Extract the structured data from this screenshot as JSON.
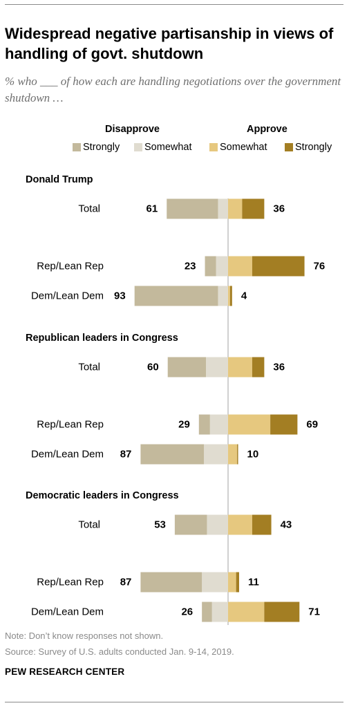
{
  "title": "Widespread negative partisanship in views of handling of govt. shutdown",
  "subtitle": "% who ___ of how each are handling negotiations over the government shutdown …",
  "legend": {
    "disapprove_head": "Disapprove",
    "approve_head": "Approve",
    "items": [
      "Strongly",
      "Somewhat",
      "Somewhat",
      "Strongly"
    ]
  },
  "colors": {
    "disapprove_strongly": "#c3b99c",
    "disapprove_somewhat": "#e0dcd0",
    "approve_somewhat": "#e6c87f",
    "approve_strongly": "#a37e23"
  },
  "chart_data": {
    "type": "bar",
    "stacked": true,
    "diverging": true,
    "series_keys": [
      "disapprove_strongly",
      "disapprove_somewhat",
      "approve_somewhat",
      "approve_strongly"
    ],
    "sections": [
      {
        "heading": "Donald Trump",
        "rows": [
          {
            "label": "Total",
            "disapprove_total": 61,
            "approve_total": 36,
            "disapprove_strongly": 51,
            "disapprove_somewhat": 10,
            "approve_somewhat": 14,
            "approve_strongly": 22
          },
          {
            "label": "Rep/Lean Rep",
            "disapprove_total": 23,
            "approve_total": 76,
            "disapprove_strongly": 11,
            "disapprove_somewhat": 12,
            "approve_somewhat": 24,
            "approve_strongly": 52
          },
          {
            "label": "Dem/Lean Dem",
            "disapprove_total": 93,
            "approve_total": 4,
            "disapprove_strongly": 83,
            "disapprove_somewhat": 10,
            "approve_somewhat": 2,
            "approve_strongly": 2
          }
        ]
      },
      {
        "heading": "Republican leaders in Congress",
        "rows": [
          {
            "label": "Total",
            "disapprove_total": 60,
            "approve_total": 36,
            "disapprove_strongly": 38,
            "disapprove_somewhat": 22,
            "approve_somewhat": 24,
            "approve_strongly": 12
          },
          {
            "label": "Rep/Lean Rep",
            "disapprove_total": 29,
            "approve_total": 69,
            "disapprove_strongly": 11,
            "disapprove_somewhat": 18,
            "approve_somewhat": 42,
            "approve_strongly": 27
          },
          {
            "label": "Dem/Lean Dem",
            "disapprove_total": 87,
            "approve_total": 10,
            "disapprove_strongly": 63,
            "disapprove_somewhat": 24,
            "approve_somewhat": 9,
            "approve_strongly": 1
          }
        ]
      },
      {
        "heading": "Democratic leaders in Congress",
        "rows": [
          {
            "label": "Total",
            "disapprove_total": 53,
            "approve_total": 43,
            "disapprove_strongly": 32,
            "disapprove_somewhat": 21,
            "approve_somewhat": 24,
            "approve_strongly": 19
          },
          {
            "label": "Rep/Lean Rep",
            "disapprove_total": 87,
            "approve_total": 11,
            "disapprove_strongly": 61,
            "disapprove_somewhat": 26,
            "approve_somewhat": 8,
            "approve_strongly": 3
          },
          {
            "label": "Dem/Lean Dem",
            "disapprove_total": 26,
            "approve_total": 71,
            "disapprove_strongly": 10,
            "disapprove_somewhat": 16,
            "approve_somewhat": 36,
            "approve_strongly": 35
          }
        ]
      }
    ]
  },
  "note": "Note: Don’t know responses not shown.",
  "source": "Source: Survey of U.S. adults conducted Jan. 9-14, 2019.",
  "brand": "PEW RESEARCH CENTER"
}
